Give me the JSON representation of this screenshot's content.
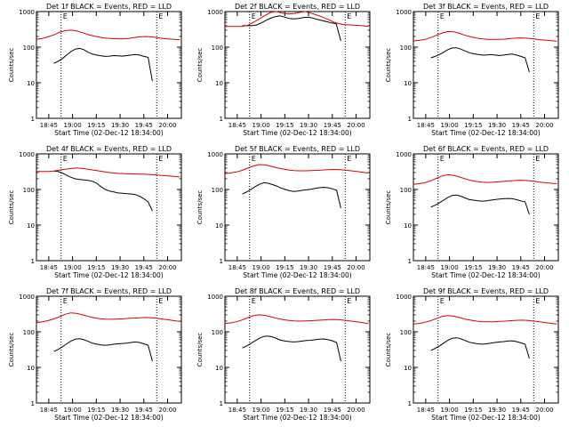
{
  "chart_data": {
    "type": "line",
    "grid": false,
    "yscale": "log",
    "ylim": [
      1,
      1000
    ],
    "y_ticks": [
      1,
      10,
      100,
      1000
    ],
    "y_tick_labels": [
      "1",
      "10",
      "100",
      "1000"
    ],
    "x_tick_labels": [
      "18:45",
      "19:00",
      "19:15",
      "19:30",
      "19:45",
      "20:00"
    ],
    "ylabel": "Counts/sec",
    "xlabel": "Start Time (02-Dec-12 18:34:00)",
    "marker_labels": [
      "E",
      "E"
    ],
    "series_colors": {
      "events": "#000000",
      "lld": "#e00000"
    },
    "panels": [
      {
        "title": "Det 1f BLACK = Events, RED = LLD",
        "series": [
          {
            "name": "BLACK = Events",
            "values": [
              35,
              40,
              48,
              60,
              75,
              88,
              92,
              85,
              72,
              64,
              60,
              57,
              55,
              56,
              58,
              57,
              56,
              58,
              60,
              62,
              60,
              55,
              52,
              11
            ]
          },
          {
            "name": "RED = LLD",
            "values": [
              165,
              175,
              195,
              220,
              260,
              290,
              300,
              285,
              255,
              225,
              205,
              190,
              180,
              175,
              172,
              170,
              175,
              185,
              195,
              200,
              195,
              185,
              175,
              170,
              165,
              160
            ]
          }
        ]
      },
      {
        "title": "Det 2f BLACK = Events, RED = LLD",
        "series": [
          {
            "name": "BLACK = Events",
            "values": [
              400,
              400,
              400,
              420,
              480,
              560,
              650,
              720,
              760,
              700,
              640,
              620,
              640,
              680,
              700,
              660,
              600,
              560,
              520,
              480,
              460,
              150
            ]
          },
          {
            "name": "RED = LLD",
            "values": [
              380,
              380,
              380,
              380,
              410,
              500,
              620,
              780,
              950,
              1000,
              900,
              850,
              880,
              950,
              1000,
              900,
              800,
              700,
              600,
              500,
              450,
              430,
              420,
              410,
              400,
              380
            ]
          }
        ]
      },
      {
        "title": "Det 3f BLACK = Events, RED = LLD",
        "series": [
          {
            "name": "BLACK = Events",
            "values": [
              50,
              55,
              62,
              72,
              85,
              95,
              96,
              88,
              78,
              70,
              65,
              62,
              60,
              60,
              62,
              60,
              58,
              60,
              62,
              64,
              60,
              55,
              50,
              20
            ]
          },
          {
            "name": "RED = LLD",
            "values": [
              150,
              155,
              165,
              185,
              215,
              250,
              275,
              270,
              245,
              215,
              195,
              180,
              170,
              165,
              165,
              165,
              168,
              175,
              180,
              182,
              178,
              170,
              162,
              158,
              152,
              148
            ]
          }
        ]
      },
      {
        "title": "Det 4f BLACK = Events, RED = LLD",
        "series": [
          {
            "name": "BLACK = Events",
            "values": [
              330,
              320,
              290,
              250,
              220,
              200,
              190,
              185,
              180,
              170,
              150,
              120,
              100,
              90,
              85,
              80,
              78,
              76,
              75,
              72,
              65,
              55,
              45,
              25
            ]
          },
          {
            "name": "RED = LLD",
            "values": [
              320,
              320,
              320,
              330,
              350,
              370,
              390,
              400,
              390,
              370,
              350,
              330,
              310,
              295,
              285,
              280,
              275,
              272,
              270,
              268,
              262,
              255,
              248,
              240,
              232,
              225
            ]
          }
        ]
      },
      {
        "title": "Det 5f BLACK = Events, RED = LLD",
        "series": [
          {
            "name": "BLACK = Events",
            "values": [
              75,
              85,
              100,
              120,
              140,
              155,
              150,
              138,
              125,
              110,
              100,
              92,
              88,
              90,
              95,
              98,
              102,
              108,
              112,
              115,
              112,
              105,
              95,
              30
            ]
          },
          {
            "name": "RED = LLD",
            "values": [
              280,
              290,
              310,
              345,
              400,
              460,
              500,
              490,
              450,
              410,
              380,
              355,
              340,
              335,
              335,
              340,
              345,
              352,
              360,
              365,
              360,
              350,
              335,
              320,
              305,
              290
            ]
          }
        ]
      },
      {
        "title": "Det 6f BLACK = Events, RED = LLD",
        "series": [
          {
            "name": "BLACK = Events",
            "values": [
              32,
              36,
              42,
              50,
              60,
              68,
              70,
              65,
              58,
              52,
              50,
              48,
              47,
              48,
              50,
              52,
              54,
              55,
              56,
              55,
              52,
              48,
              45,
              20
            ]
          },
          {
            "name": "RED = LLD",
            "values": [
              140,
              145,
              155,
              175,
              205,
              240,
              260,
              250,
              225,
              200,
              180,
              168,
              160,
              158,
              160,
              165,
              170,
              175,
              180,
              182,
              178,
              170,
              160,
              155,
              150,
              145
            ]
          }
        ]
      },
      {
        "title": "Det 7f BLACK = Events, RED = LLD",
        "series": [
          {
            "name": "BLACK = Events",
            "values": [
              28,
              32,
              38,
              46,
              55,
              62,
              64,
              60,
              54,
              48,
              45,
              43,
              42,
              43,
              45,
              46,
              47,
              48,
              50,
              52,
              50,
              46,
              42,
              15
            ]
          },
          {
            "name": "RED = LLD",
            "values": [
              180,
              190,
              205,
              230,
              265,
              310,
              340,
              330,
              300,
              270,
              250,
              235,
              228,
              225,
              228,
              232,
              238,
              242,
              248,
              252,
              248,
              240,
              228,
              218,
              205,
              195
            ]
          }
        ]
      },
      {
        "title": "Det 8f BLACK = Events, RED = LLD",
        "series": [
          {
            "name": "BLACK = Events",
            "values": [
              35,
              40,
              47,
              56,
              66,
              74,
              76,
              72,
              65,
              58,
              55,
              53,
              52,
              53,
              55,
              57,
              58,
              60,
              62,
              63,
              60,
              56,
              50,
              15
            ]
          },
          {
            "name": "RED = LLD",
            "values": [
              170,
              178,
              192,
              215,
              250,
              285,
              300,
              290,
              265,
              240,
              222,
              210,
              202,
              200,
              202,
              205,
              210,
              215,
              220,
              222,
              218,
              210,
              200,
              190,
              180,
              170
            ]
          }
        ]
      },
      {
        "title": "Det 9f BLACK = Events, RED = LLD",
        "series": [
          {
            "name": "BLACK = Events",
            "values": [
              30,
              34,
              40,
              48,
              58,
              66,
              68,
              64,
              57,
              51,
              48,
              46,
              45,
              46,
              48,
              50,
              52,
              53,
              55,
              56,
              53,
              49,
              45,
              18
            ]
          },
          {
            "name": "RED = LLD",
            "values": [
              165,
              172,
              185,
              205,
              235,
              270,
              285,
              275,
              252,
              228,
              212,
              200,
              193,
              190,
              192,
              196,
              200,
              205,
              210,
              212,
              208,
              200,
              190,
              182,
              172,
              165
            ]
          }
        ]
      }
    ]
  }
}
